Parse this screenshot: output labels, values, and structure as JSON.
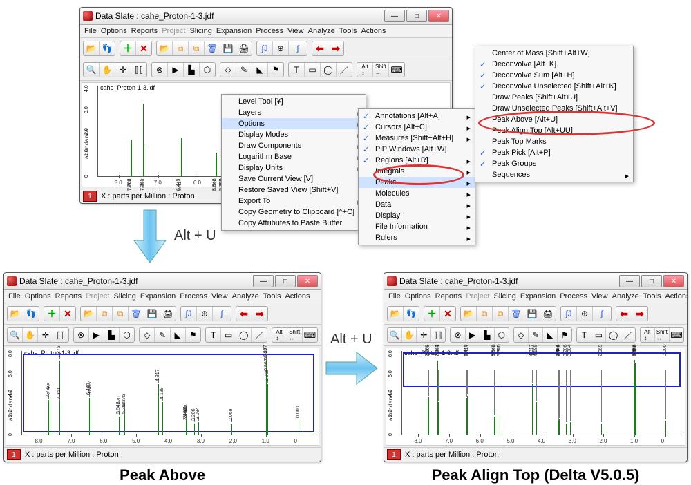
{
  "windows": {
    "title": "Data Slate : cahe_Proton-1-3.jdf",
    "buttons": {
      "min": "—",
      "max": "□",
      "close": "✕"
    }
  },
  "menubar": [
    "File",
    "Options",
    "Reports",
    "Project",
    "Slicing",
    "Expansion",
    "Process",
    "View",
    "Analyze",
    "Tools",
    "Actions"
  ],
  "menubar_disabled": [
    "Project"
  ],
  "footer": {
    "num": "1",
    "xaxis": "X : parts per Million : Proton"
  },
  "filename": "cahe_Proton-1-3.jdf",
  "ylabel": "abundance",
  "ctx1": [
    {
      "label": "Level Tool [¥]"
    },
    {
      "label": "Layers",
      "sub": true
    },
    {
      "label": "Options",
      "sub": true,
      "hl": true
    },
    {
      "label": "Display Modes",
      "sub": true
    },
    {
      "label": "Draw Components",
      "sub": true
    },
    {
      "label": "Logarithm Base",
      "sub": true
    },
    {
      "label": "Display Units",
      "sub": true
    },
    {
      "label": "Save Current View [V]"
    },
    {
      "label": "Restore Saved View [Shift+V]"
    },
    {
      "label": "Export To",
      "sub": true
    },
    {
      "label": "Copy Geometry to Clipboard [^+C]"
    },
    {
      "label": "Copy Attributes to Paste Buffer"
    }
  ],
  "ctx2": [
    {
      "label": "Annotations [Alt+A]",
      "chk": true,
      "sub": true
    },
    {
      "label": "Cursors [Alt+C]",
      "chk": true,
      "sub": true
    },
    {
      "label": "Measures [Shift+Alt+H]",
      "chk": true,
      "sub": true
    },
    {
      "label": "PiP Windows [Alt+W]",
      "chk": true
    },
    {
      "label": "Regions [Alt+R]",
      "chk": true,
      "sub": true
    },
    {
      "label": "Integrals",
      "sub": true
    },
    {
      "label": "Peaks",
      "sub": true,
      "hl": true
    },
    {
      "label": "Molecules",
      "sub": true
    },
    {
      "label": "Data",
      "sub": true
    },
    {
      "label": "Display",
      "sub": true
    },
    {
      "label": "File Information",
      "sub": true
    },
    {
      "label": "Rulers",
      "sub": true
    }
  ],
  "ctx3": [
    {
      "label": "Center of Mass [Shift+Alt+W]"
    },
    {
      "label": "Deconvolve [Alt+K]",
      "chk": true
    },
    {
      "label": "Deconvolve Sum [Alt+H]",
      "chk": true
    },
    {
      "label": "Deconvolve Unselected [Shift+Alt+K]",
      "chk": true
    },
    {
      "label": "Draw Peaks [Shift+Alt+U]"
    },
    {
      "label": "Draw Unselected Peaks [Shift+Alt+V]"
    },
    {
      "label": "Peak Above [Alt+U]"
    },
    {
      "label": "Peak Align Top [Alt+UU]"
    },
    {
      "label": "Peak Top Marks"
    },
    {
      "label": "Peak Pick [Alt+P]",
      "chk": true
    },
    {
      "label": "Peak Groups",
      "chk": true
    },
    {
      "label": "Sequences",
      "sub": true
    }
  ],
  "shortcut": "Alt + U",
  "captions": {
    "left": "Peak Above",
    "right": "Peak Align Top (Delta V5.0.5)"
  },
  "xticks": [
    8.0,
    7.0,
    6.0,
    5.0,
    4.0,
    3.0,
    2.0,
    1.0,
    0
  ],
  "yticks_main": [
    "0",
    "1.0",
    "2.0",
    "3.0",
    "4.0"
  ],
  "yticks_small": [
    "0",
    "2.0",
    "4.0",
    "6.0",
    "8.0"
  ],
  "peaksA": [
    {
      "x": 7.702,
      "h": 0.45,
      "lab": "7.702"
    },
    {
      "x": 7.669,
      "h": 0.48,
      "lab": "7.669"
    },
    {
      "x": 7.375,
      "h": 0.95,
      "lab": "7.375"
    },
    {
      "x": 7.361,
      "h": 0.42,
      "lab": "7.361"
    },
    {
      "x": 6.449,
      "h": 0.47,
      "lab": "6.449"
    },
    {
      "x": 6.417,
      "h": 0.5,
      "lab": "6.417"
    },
    {
      "x": 5.542,
      "h": 0.24,
      "lab": "5.542"
    },
    {
      "x": 5.52,
      "h": 0.31,
      "lab": "5.520"
    },
    {
      "x": 5.375,
      "h": 0.33,
      "lab": "5.375"
    },
    {
      "x": 5.36,
      "h": 0.24,
      "lab": "5.360"
    },
    {
      "x": 4.317,
      "h": 0.65,
      "lab": "4.317"
    },
    {
      "x": 4.189,
      "h": 0.42,
      "lab": "4.189"
    },
    {
      "x": 3.464,
      "h": 0.16,
      "lab": "3.464"
    },
    {
      "x": 3.461,
      "h": 0.18,
      "lab": "3.461"
    },
    {
      "x": 3.448,
      "h": 0.2,
      "lab": "3.448"
    },
    {
      "x": 3.206,
      "h": 0.15,
      "lab": "3.206"
    },
    {
      "x": 3.084,
      "h": 0.17,
      "lab": "3.084"
    },
    {
      "x": 2.069,
      "h": 0.15,
      "lab": "2.069"
    },
    {
      "x": 0.997,
      "h": 0.96,
      "lab": "0.997"
    },
    {
      "x": 0.982,
      "h": 0.92,
      "lab": "0.982"
    },
    {
      "x": 0.966,
      "h": 0.78,
      "lab": "0.966"
    },
    {
      "x": 0.959,
      "h": 0.65,
      "lab": "0.959"
    },
    {
      "x": 0.0,
      "h": 0.18,
      "lab": "0.000"
    }
  ],
  "colors": {
    "accent": "#2c5fd6",
    "peak": "#1a7d1a",
    "highlight": "#cfe2ff",
    "red": "#d33"
  }
}
